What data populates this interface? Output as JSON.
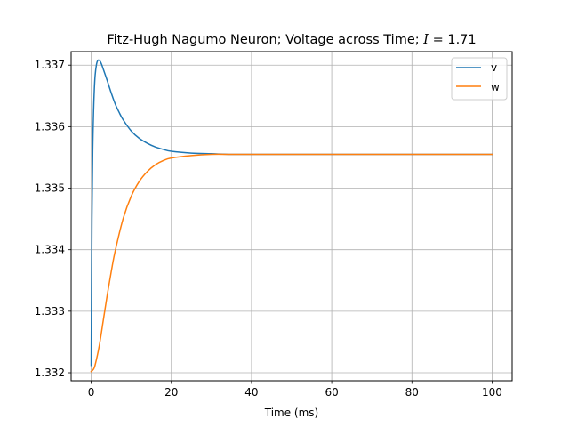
{
  "chart_data": {
    "type": "line",
    "title": "Fitz-Hugh Nagumo Neuron; Voltage across Time; ",
    "title_math": "I = 1.71",
    "title_math_var": "I",
    "title_math_rest": " = 1.71",
    "xlabel": "Time (ms)",
    "ylabel": "",
    "xlim": [
      -5,
      105
    ],
    "ylim": [
      1.33187,
      1.33722
    ],
    "xticks": [
      0,
      20,
      40,
      60,
      80,
      100
    ],
    "xtick_labels": [
      "0",
      "20",
      "40",
      "60",
      "80",
      "100"
    ],
    "yticks": [
      1.332,
      1.333,
      1.334,
      1.335,
      1.336,
      1.337
    ],
    "ytick_labels": [
      "1.332",
      "1.333",
      "1.334",
      "1.335",
      "1.336",
      "1.337"
    ],
    "grid": true,
    "legend_position": "upper right",
    "series": [
      {
        "name": "v",
        "color": "#1f77b4",
        "x": [
          0,
          0.2,
          0.4,
          0.6,
          0.8,
          1,
          1.3,
          1.6,
          2,
          2.5,
          3,
          4,
          5,
          6,
          7,
          8,
          10,
          12,
          14,
          16,
          18,
          20,
          25,
          30,
          35,
          40,
          50,
          60,
          70,
          80,
          90,
          100
        ],
        "y": [
          1.33212,
          1.3345,
          1.33565,
          1.33625,
          1.33662,
          1.33684,
          1.337,
          1.33707,
          1.33708,
          1.33703,
          1.33694,
          1.33675,
          1.33655,
          1.33637,
          1.33623,
          1.33611,
          1.33593,
          1.33581,
          1.33573,
          1.33567,
          1.33563,
          1.3356,
          1.33557,
          1.33556,
          1.33555,
          1.33555,
          1.33555,
          1.33555,
          1.33555,
          1.33555,
          1.33555,
          1.33555
        ]
      },
      {
        "name": "w",
        "color": "#ff7f0e",
        "x": [
          0,
          0.5,
          1,
          2,
          3,
          4,
          5,
          6,
          8,
          10,
          12,
          14,
          16,
          18,
          20,
          25,
          30,
          35,
          40,
          50,
          60,
          70,
          80,
          90,
          100
        ],
        "y": [
          1.33202,
          1.33205,
          1.33213,
          1.33243,
          1.33284,
          1.33326,
          1.33364,
          1.33398,
          1.33451,
          1.33487,
          1.33511,
          1.33527,
          1.33538,
          1.33545,
          1.33549,
          1.33553,
          1.33555,
          1.33555,
          1.33555,
          1.33555,
          1.33555,
          1.33555,
          1.33555,
          1.33555,
          1.33555
        ]
      }
    ]
  }
}
